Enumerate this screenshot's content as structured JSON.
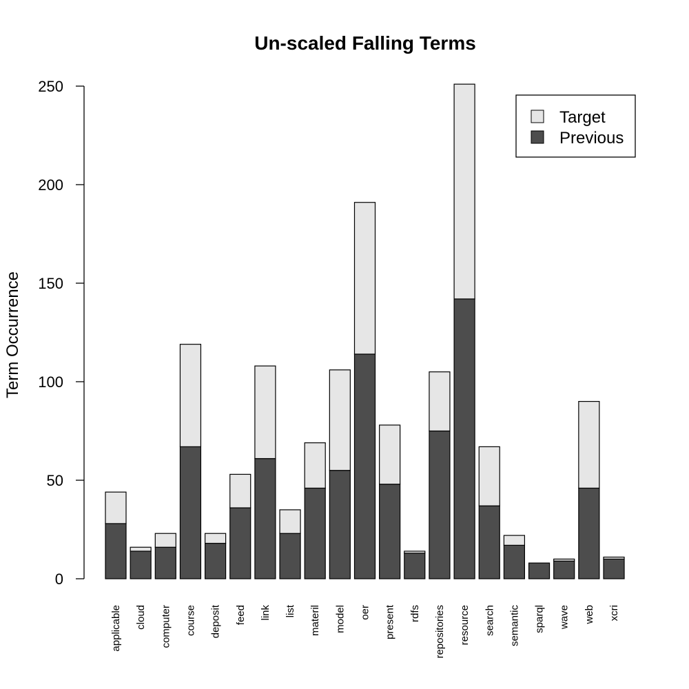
{
  "chart_data": {
    "type": "bar",
    "stacked": true,
    "title": "Un-scaled Falling Terms",
    "xlabel": "",
    "ylabel": "Term Occurrence",
    "ylim": [
      0,
      250
    ],
    "yticks": [
      0,
      50,
      100,
      150,
      200,
      250
    ],
    "grid": false,
    "legend_position": "top-right",
    "categories": [
      "applicable",
      "cloud",
      "computer",
      "course",
      "deposit",
      "feed",
      "link",
      "list",
      "materil",
      "model",
      "oer",
      "present",
      "rdfs",
      "repositories",
      "resource",
      "search",
      "semantic",
      "sparql",
      "wave",
      "web",
      "xcri"
    ],
    "series": [
      {
        "name": "Previous",
        "color": "#4d4d4d",
        "values": [
          28,
          14,
          16,
          67,
          18,
          36,
          61,
          23,
          46,
          55,
          114,
          48,
          13,
          75,
          142,
          37,
          17,
          8,
          9,
          46,
          10
        ]
      },
      {
        "name": "Target",
        "color": "#e6e6e6",
        "values": [
          16,
          2,
          7,
          52,
          5,
          17,
          47,
          12,
          23,
          51,
          77,
          30,
          1,
          30,
          109,
          30,
          5,
          0,
          1,
          44,
          1
        ]
      }
    ]
  }
}
